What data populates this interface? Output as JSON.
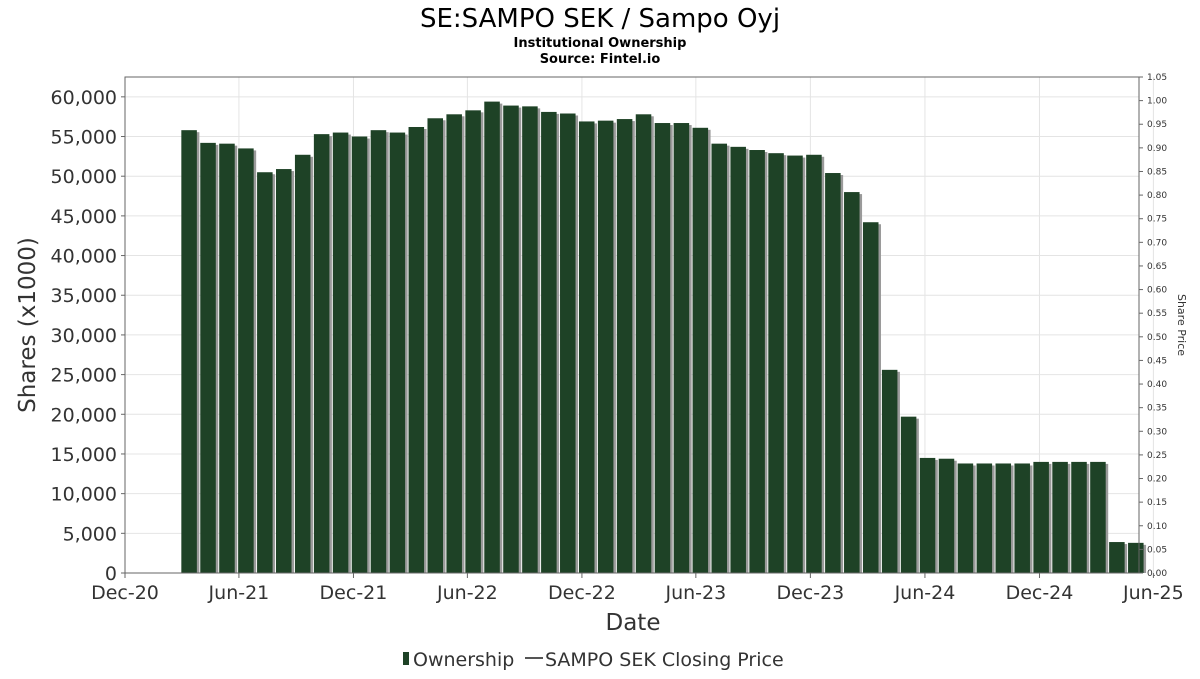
{
  "colors": {
    "bar": "#1e4226",
    "bar_shadow": "#9a9a9a",
    "grid": "#e4e4e4",
    "axis": "#666666"
  },
  "chart_data": {
    "type": "bar",
    "title": "SE:SAMPO SEK / Sampo Oyj",
    "subtitle": "Institutional Ownership",
    "source": "Source: Fintel.io",
    "xlabel": "Date",
    "ylabel": "Shares (x1000)",
    "y2label": "Share Price",
    "ylim": [
      0,
      62500
    ],
    "y2lim": [
      0,
      1.05
    ],
    "yticks": [
      "0",
      "5,000",
      "10,000",
      "15,000",
      "20,000",
      "25,000",
      "30,000",
      "35,000",
      "40,000",
      "45,000",
      "50,000",
      "55,000",
      "60,000"
    ],
    "y2ticks": [
      "0.00",
      "0.05",
      "0.10",
      "0.15",
      "0.20",
      "0.25",
      "0.30",
      "0.35",
      "0.40",
      "0.45",
      "0.50",
      "0.55",
      "0.60",
      "0.65",
      "0.70",
      "0.75",
      "0.80",
      "0.85",
      "0.90",
      "0.95",
      "1.00",
      "1.05"
    ],
    "xticks": [
      "Dec-20",
      "Jun-21",
      "Dec-21",
      "Jun-22",
      "Dec-22",
      "Jun-23",
      "Dec-23",
      "Jun-24",
      "Dec-24",
      "Jun-25"
    ],
    "xrange_days": [
      0,
      1620
    ],
    "xtick_days": [
      0,
      182,
      365,
      547,
      730,
      912,
      1095,
      1278,
      1461,
      1643
    ],
    "series": [
      {
        "name": "Ownership",
        "bar_start_day": 90,
        "bar_step_days": 30.25,
        "values": [
          55800,
          54200,
          54100,
          53500,
          50500,
          50900,
          52700,
          55300,
          55500,
          55000,
          55800,
          55500,
          56200,
          57300,
          57800,
          58300,
          59400,
          58900,
          58800,
          58100,
          57900,
          56900,
          57000,
          57200,
          57800,
          56700,
          56700,
          56100,
          54100,
          53700,
          53300,
          52900,
          52600,
          52700,
          50400,
          48000,
          44200,
          25600,
          19700,
          14500,
          14400,
          13800,
          13800,
          13800,
          13800,
          14000,
          14000,
          14000,
          14000,
          3900,
          3800
        ]
      },
      {
        "name": "SAMPO SEK Closing Price",
        "values": []
      }
    ],
    "legend": [
      "Ownership",
      "SAMPO SEK Closing Price"
    ]
  }
}
